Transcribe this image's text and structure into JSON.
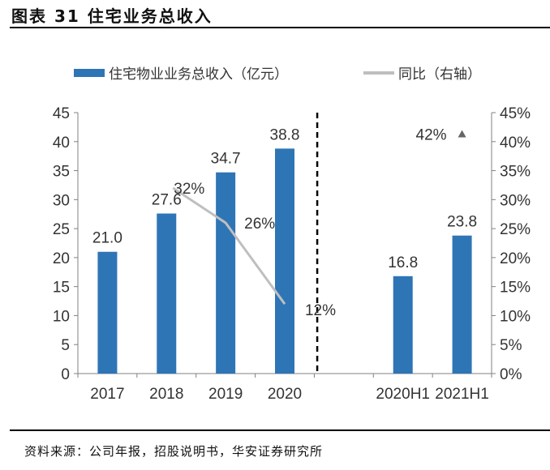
{
  "header": {
    "title": "图表 31 住宅业务总收入"
  },
  "footer": {
    "source": "资料来源：公司年报，招股说明书，华安证券研究所"
  },
  "colors": {
    "bar": "#2E75B6",
    "line": "#BFBFBF",
    "axis": "#808080"
  },
  "chart_data": {
    "type": "bar",
    "title": "住宅业务总收入",
    "categories": [
      "2017",
      "2018",
      "2019",
      "2020",
      "",
      "2020H1",
      "2021H1"
    ],
    "series": [
      {
        "name": "住宅物业业务总收入（亿元）",
        "type": "bar",
        "axis": "left",
        "values": [
          21.0,
          27.6,
          34.7,
          38.8,
          null,
          16.8,
          23.8
        ],
        "labels": [
          "21.0",
          "27.6",
          "34.7",
          "38.8",
          "",
          "16.8",
          "23.8"
        ]
      },
      {
        "name": "同比（右轴）",
        "type": "line",
        "axis": "right",
        "values": [
          null,
          32,
          26,
          12,
          null,
          null,
          42
        ],
        "labels": [
          "",
          "32%",
          "26%",
          "12%",
          "",
          "",
          "42%"
        ]
      }
    ],
    "left_axis": {
      "ylim": [
        0,
        45
      ],
      "ticks": [
        "0",
        "5",
        "10",
        "15",
        "20",
        "25",
        "30",
        "35",
        "40",
        "45"
      ]
    },
    "right_axis": {
      "ylim": [
        0,
        45
      ],
      "ticks": [
        "0%",
        "5%",
        "10%",
        "15%",
        "20%",
        "25%",
        "30%",
        "35%",
        "40%",
        "45%"
      ]
    },
    "legend": {
      "placement": "top"
    },
    "divider": "dashed line between 2020 and 2020H1",
    "grid": false
  }
}
